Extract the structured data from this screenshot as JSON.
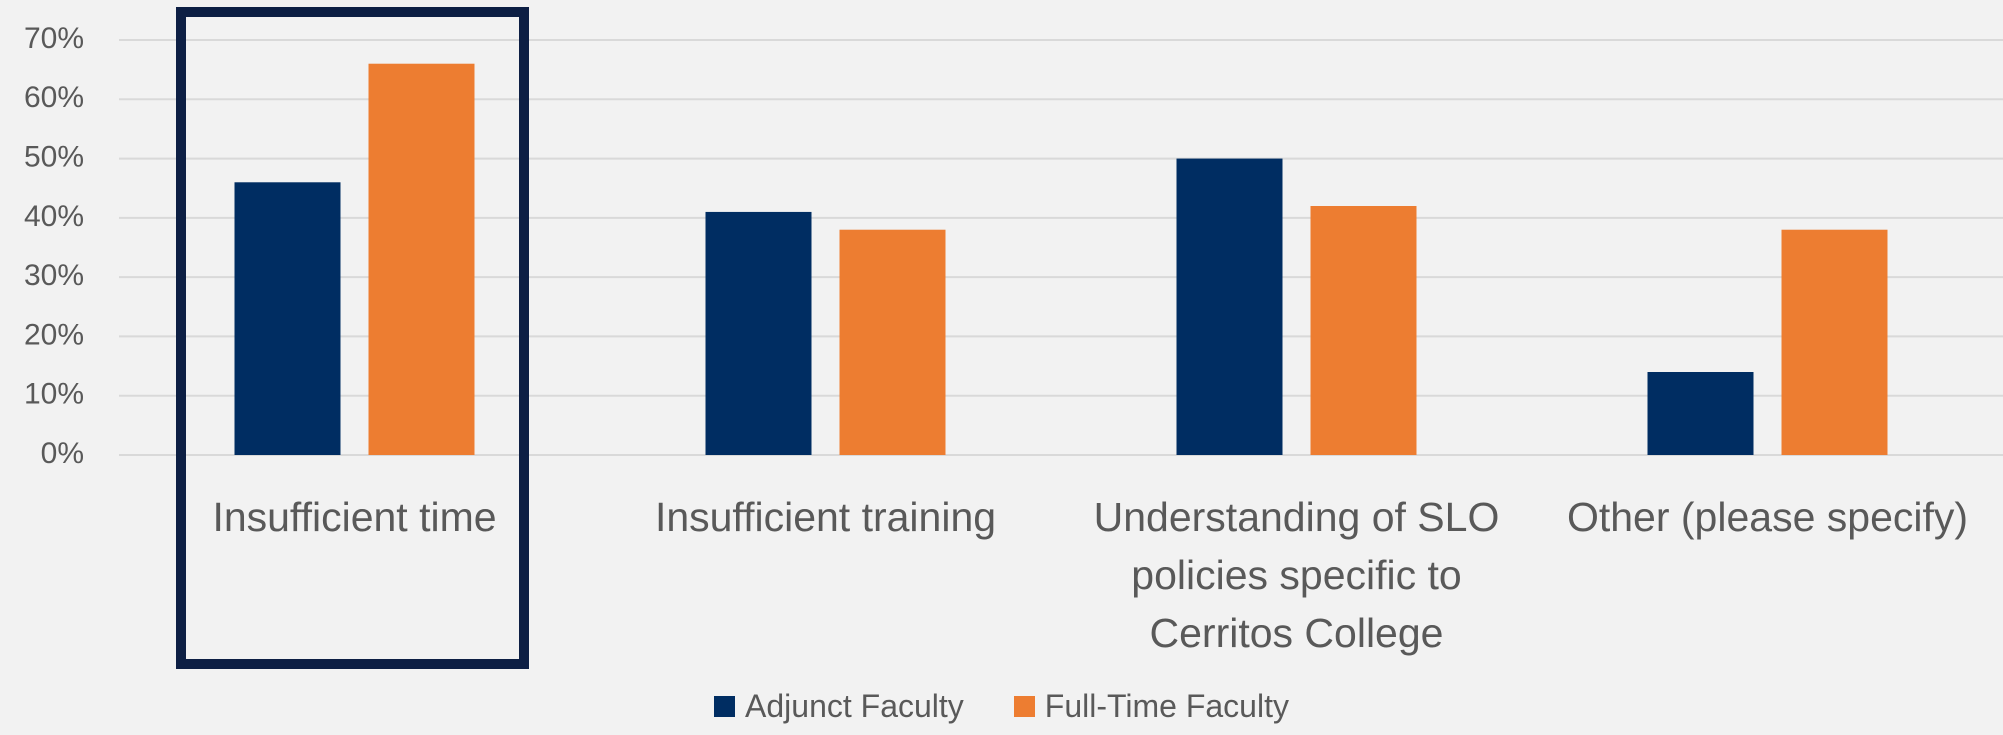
{
  "chart_data": {
    "type": "bar",
    "categories": [
      "Insufficient time",
      "Insufficient training",
      "Understanding of SLO policies specific to Cerritos College",
      "Other (please specify)"
    ],
    "series": [
      {
        "name": "Adjunct Faculty",
        "color": "#002d62",
        "values": [
          46,
          41,
          50,
          14
        ]
      },
      {
        "name": "Full-Time Faculty",
        "color": "#ed7d31",
        "values": [
          66,
          38,
          42,
          38
        ]
      }
    ],
    "ylim": [
      0,
      70
    ],
    "yticks": [
      {
        "value": 0,
        "label": "0%"
      },
      {
        "value": 10,
        "label": "10%"
      },
      {
        "value": 20,
        "label": "20%"
      },
      {
        "value": 30,
        "label": "30%"
      },
      {
        "value": 40,
        "label": "40%"
      },
      {
        "value": 50,
        "label": "50%"
      },
      {
        "value": 60,
        "label": "60%"
      },
      {
        "value": 70,
        "label": "70%"
      }
    ],
    "grid": true,
    "legend": "bottom"
  }
}
